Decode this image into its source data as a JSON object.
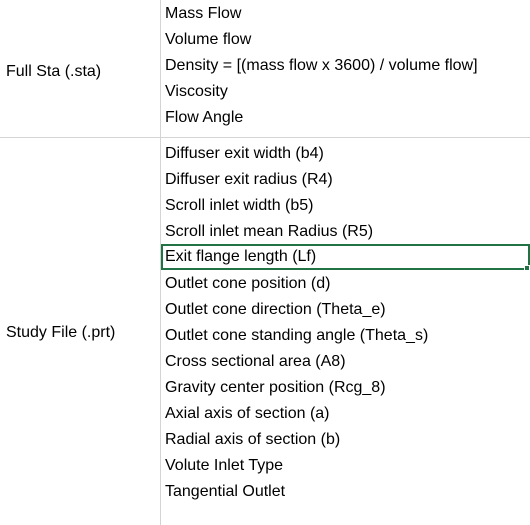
{
  "sheet": {
    "groups": [
      {
        "label": "Full Sta (.sta)",
        "items": [
          "Mass Flow",
          "Volume flow",
          "Density = [(mass flow x 3600) / volume flow]",
          "Viscosity",
          "Flow Angle"
        ]
      },
      {
        "label": "Study File (.prt)",
        "items": [
          "Diffuser exit width (b4)",
          "Diffuser exit radius (R4)",
          "Scroll inlet width (b5)",
          "Scroll inlet mean Radius (R5)",
          "Exit flange length (Lf)",
          "Outlet cone position (d)",
          "Outlet cone direction (Theta_e)",
          "Outlet cone standing angle (Theta_s)",
          "Cross sectional area (A8)",
          "Gravity center position (Rcg_8)",
          "Axial axis of section (a)",
          "Radial axis of section (b)",
          "Volute Inlet Type",
          "Tangential Outlet"
        ]
      }
    ],
    "selected_cell": "Exit flange length (Lf)"
  },
  "colors": {
    "gridline": "#d4d4d4",
    "selection": "#217346"
  }
}
